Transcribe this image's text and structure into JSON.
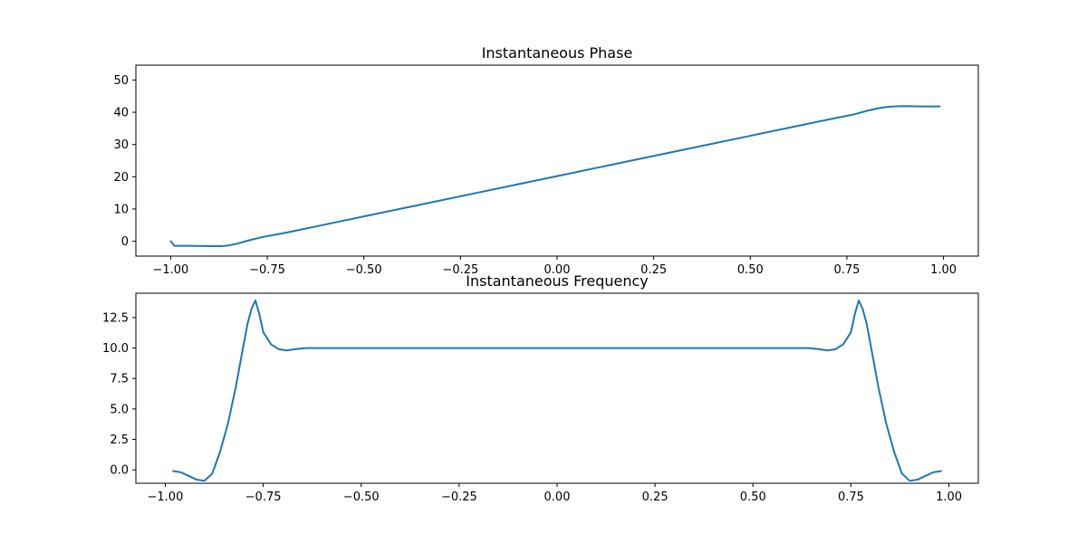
{
  "chart_data": [
    {
      "type": "line",
      "title": "Instantaneous Phase",
      "xlabel": "",
      "ylabel": "",
      "xlim": [
        -1.09,
        1.09
      ],
      "ylim": [
        -4.6,
        54.6
      ],
      "xticks": [
        -1.0,
        -0.75,
        -0.5,
        -0.25,
        0.0,
        0.25,
        0.5,
        0.75,
        1.0
      ],
      "xtick_labels": [
        "−1.00",
        "−0.75",
        "−0.50",
        "−0.25",
        "0.00",
        "0.25",
        "0.50",
        "0.75",
        "1.00"
      ],
      "yticks": [
        0,
        10,
        20,
        30,
        40,
        50
      ],
      "ytick_labels": [
        "0",
        "10",
        "20",
        "30",
        "40",
        "50"
      ],
      "grid": false,
      "color": "#1f77b4",
      "series": [
        {
          "x": [
            -1.0,
            -0.99,
            -0.95,
            -0.9,
            -0.87,
            -0.85,
            -0.83,
            -0.8,
            -0.77,
            -0.75,
            -0.7,
            -0.6,
            -0.5,
            -0.4,
            -0.3,
            -0.2,
            -0.1,
            0.0,
            0.1,
            0.2,
            0.3,
            0.4,
            0.5,
            0.6,
            0.7,
            0.75,
            0.77,
            0.8,
            0.83,
            0.85,
            0.87,
            0.9,
            0.95,
            0.99
          ],
          "y": [
            0.0,
            -1.4,
            -1.4,
            -1.5,
            -1.5,
            -1.3,
            -0.8,
            0.2,
            1.1,
            1.6,
            2.7,
            5.2,
            7.7,
            10.2,
            12.7,
            15.2,
            17.7,
            20.2,
            22.7,
            25.2,
            27.7,
            30.2,
            32.7,
            35.2,
            37.7,
            38.9,
            39.4,
            40.4,
            41.2,
            41.6,
            41.8,
            41.9,
            41.8,
            41.8
          ]
        }
      ]
    },
    {
      "type": "line",
      "title": "Instantaneous Frequency",
      "xlabel": "",
      "ylabel": "",
      "xlim": [
        -1.075,
        1.075
      ],
      "ylim": [
        -1.1,
        14.5
      ],
      "xticks": [
        -1.0,
        -0.75,
        -0.5,
        -0.25,
        0.0,
        0.25,
        0.5,
        0.75,
        1.0
      ],
      "xtick_labels": [
        "−1.00",
        "−0.75",
        "−0.50",
        "−0.25",
        "0.00",
        "0.25",
        "0.50",
        "0.75",
        "1.00"
      ],
      "yticks": [
        0.0,
        2.5,
        5.0,
        7.5,
        10.0,
        12.5
      ],
      "ytick_labels": [
        "0.0",
        "2.5",
        "5.0",
        "7.5",
        "10.0",
        "12.5"
      ],
      "grid": false,
      "color": "#1f77b4",
      "series": [
        {
          "x": [
            -0.98,
            -0.96,
            -0.94,
            -0.92,
            -0.9,
            -0.88,
            -0.86,
            -0.84,
            -0.82,
            -0.8,
            -0.79,
            -0.78,
            -0.77,
            -0.76,
            -0.75,
            -0.73,
            -0.71,
            -0.69,
            -0.67,
            -0.64,
            -0.6,
            -0.5,
            -0.4,
            -0.2,
            0.0,
            0.2,
            0.4,
            0.5,
            0.6,
            0.64,
            0.67,
            0.69,
            0.71,
            0.73,
            0.75,
            0.76,
            0.77,
            0.78,
            0.79,
            0.8,
            0.82,
            0.84,
            0.86,
            0.88,
            0.9,
            0.92,
            0.94,
            0.96,
            0.98
          ],
          "y": [
            -0.1,
            -0.2,
            -0.5,
            -0.8,
            -0.9,
            -0.3,
            1.5,
            3.8,
            6.8,
            10.3,
            12.0,
            13.2,
            13.9,
            12.8,
            11.3,
            10.3,
            9.9,
            9.8,
            9.9,
            10.0,
            10.0,
            10.0,
            10.0,
            10.0,
            10.0,
            10.0,
            10.0,
            10.0,
            10.0,
            10.0,
            9.9,
            9.8,
            9.9,
            10.3,
            11.3,
            12.8,
            13.9,
            13.2,
            12.0,
            10.3,
            6.8,
            3.8,
            1.5,
            -0.3,
            -0.9,
            -0.8,
            -0.5,
            -0.2,
            -0.1
          ]
        }
      ]
    }
  ]
}
